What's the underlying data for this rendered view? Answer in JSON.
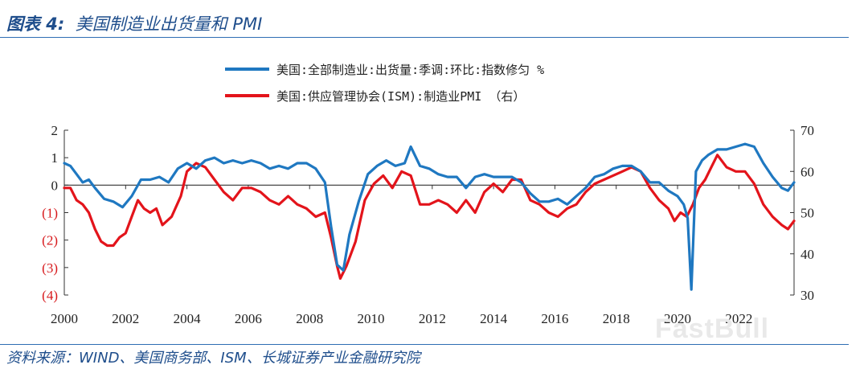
{
  "header": {
    "title_prefix": "图表 4:",
    "title_text": "美国制造业出货量和 PMI"
  },
  "source": "资料来源：WIND、美国商务部、ISM、长城证券产业金融研究院",
  "watermark": "FastBull",
  "colors": {
    "blue": "#1f78c1",
    "red": "#e3141b",
    "negative_label": "#d7191c",
    "rule": "#2e6db3"
  },
  "chart_data": {
    "type": "line",
    "title": "美国制造业出货量和 PMI",
    "x_range": [
      2000,
      2023.8
    ],
    "x_ticks": [
      2000,
      2002,
      2004,
      2006,
      2008,
      2010,
      2012,
      2014,
      2016,
      2018,
      2020,
      2022
    ],
    "x_tick_labels": [
      "2000",
      "2002",
      "2004",
      "2006",
      "2008",
      "2010",
      "2012",
      "2014",
      "2016",
      "2018",
      "2020",
      "2022"
    ],
    "left_axis": {
      "ylim": [
        -4,
        2
      ],
      "ticks": [
        2,
        1,
        0,
        -1,
        -2,
        -3,
        -4
      ],
      "tick_labels": [
        "2",
        "1",
        "0",
        "(1)",
        "(2)",
        "(3)",
        "(4)"
      ]
    },
    "right_axis": {
      "ylim": [
        30,
        70
      ],
      "ticks": [
        70,
        60,
        50,
        40,
        30
      ],
      "tick_labels": [
        "70",
        "60",
        "50",
        "40",
        "30"
      ]
    },
    "series": [
      {
        "name": "美国:全部制造业:出货量:季调:环比:指数修匀 %",
        "axis": "left",
        "color": "#1f78c1",
        "x": [
          2000.0,
          2000.2,
          2000.4,
          2000.6,
          2000.8,
          2001.0,
          2001.3,
          2001.6,
          2001.9,
          2002.2,
          2002.5,
          2002.8,
          2003.1,
          2003.4,
          2003.7,
          2004.0,
          2004.3,
          2004.6,
          2004.9,
          2005.2,
          2005.5,
          2005.8,
          2006.1,
          2006.4,
          2006.7,
          2007.0,
          2007.3,
          2007.6,
          2007.9,
          2008.2,
          2008.5,
          2008.7,
          2008.9,
          2009.1,
          2009.3,
          2009.6,
          2009.9,
          2010.2,
          2010.5,
          2010.8,
          2011.1,
          2011.3,
          2011.6,
          2011.9,
          2012.2,
          2012.5,
          2012.8,
          2013.1,
          2013.4,
          2013.7,
          2014.0,
          2014.3,
          2014.6,
          2014.9,
          2015.2,
          2015.5,
          2015.8,
          2016.1,
          2016.4,
          2016.7,
          2017.0,
          2017.3,
          2017.6,
          2017.9,
          2018.2,
          2018.5,
          2018.8,
          2019.1,
          2019.4,
          2019.7,
          2020.0,
          2020.2,
          2020.33,
          2020.45,
          2020.6,
          2020.8,
          2021.0,
          2021.3,
          2021.6,
          2021.9,
          2022.2,
          2022.5,
          2022.8,
          2023.1,
          2023.4,
          2023.6,
          2023.8
        ],
        "values": [
          0.8,
          0.7,
          0.4,
          0.1,
          0.2,
          -0.1,
          -0.5,
          -0.6,
          -0.8,
          -0.4,
          0.2,
          0.2,
          0.3,
          0.1,
          0.6,
          0.8,
          0.6,
          0.9,
          1.0,
          0.8,
          0.9,
          0.8,
          0.9,
          0.8,
          0.6,
          0.7,
          0.6,
          0.8,
          0.8,
          0.6,
          0.1,
          -1.5,
          -2.9,
          -3.1,
          -1.8,
          -0.6,
          0.4,
          0.7,
          0.9,
          0.7,
          0.8,
          1.4,
          0.7,
          0.6,
          0.4,
          0.3,
          0.3,
          -0.1,
          0.3,
          0.4,
          0.3,
          0.3,
          0.3,
          0.1,
          -0.3,
          -0.6,
          -0.6,
          -0.5,
          -0.7,
          -0.4,
          -0.1,
          0.3,
          0.4,
          0.6,
          0.7,
          0.7,
          0.5,
          0.1,
          0.1,
          -0.2,
          -0.4,
          -0.7,
          -1.2,
          -3.8,
          0.5,
          0.9,
          1.1,
          1.3,
          1.3,
          1.4,
          1.5,
          1.4,
          0.8,
          0.3,
          -0.1,
          -0.2,
          0.1
        ]
      },
      {
        "name": "美国:供应管理协会(ISM):制造业PMI （右）",
        "axis": "right",
        "color": "#e3141b",
        "x": [
          2000.0,
          2000.2,
          2000.4,
          2000.6,
          2000.8,
          2001.0,
          2001.2,
          2001.4,
          2001.6,
          2001.8,
          2002.0,
          2002.2,
          2002.4,
          2002.6,
          2002.8,
          2003.0,
          2003.2,
          2003.5,
          2003.8,
          2004.0,
          2004.3,
          2004.6,
          2004.9,
          2005.2,
          2005.5,
          2005.8,
          2006.1,
          2006.4,
          2006.7,
          2007.0,
          2007.3,
          2007.6,
          2007.9,
          2008.2,
          2008.5,
          2008.7,
          2008.9,
          2009.0,
          2009.2,
          2009.5,
          2009.8,
          2010.1,
          2010.4,
          2010.7,
          2011.0,
          2011.3,
          2011.6,
          2011.9,
          2012.2,
          2012.5,
          2012.8,
          2013.1,
          2013.4,
          2013.7,
          2014.0,
          2014.3,
          2014.6,
          2014.9,
          2015.2,
          2015.5,
          2015.8,
          2016.1,
          2016.4,
          2016.7,
          2017.0,
          2017.3,
          2017.6,
          2017.9,
          2018.2,
          2018.5,
          2018.8,
          2019.1,
          2019.4,
          2019.7,
          2019.9,
          2020.1,
          2020.3,
          2020.5,
          2020.7,
          2020.9,
          2021.1,
          2021.3,
          2021.6,
          2021.9,
          2022.2,
          2022.5,
          2022.8,
          2023.1,
          2023.4,
          2023.6,
          2023.8
        ],
        "values": [
          56,
          56,
          53,
          52,
          50,
          46,
          43,
          42,
          42,
          44,
          45,
          49,
          53,
          51,
          50,
          51,
          47,
          49,
          54,
          60,
          62,
          61,
          58,
          55,
          53,
          56,
          56,
          55,
          53,
          52,
          54,
          52,
          51,
          49,
          50,
          44,
          37,
          34,
          37,
          43,
          53,
          57,
          59,
          56,
          60,
          59,
          52,
          52,
          53,
          52,
          50,
          53,
          50,
          55,
          57,
          55,
          58,
          58,
          53,
          52,
          50,
          49,
          51,
          52,
          55,
          57,
          58,
          59,
          60,
          61,
          60,
          56,
          53,
          51,
          48,
          50,
          49,
          52,
          56,
          58,
          61,
          64,
          61,
          60,
          60,
          57,
          52,
          49,
          47,
          46,
          48
        ]
      }
    ]
  }
}
